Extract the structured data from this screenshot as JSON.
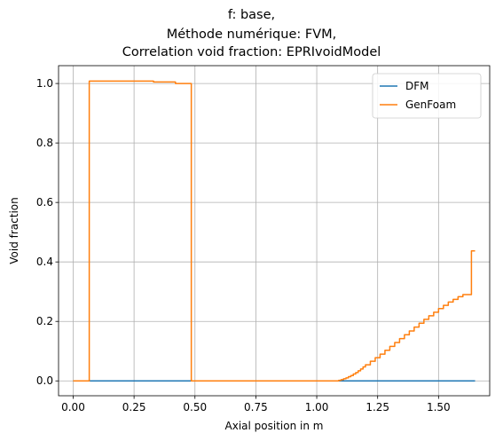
{
  "chart_data": {
    "type": "line",
    "title_lines": [
      "f: base,",
      "Méthode numérique: FVM,",
      "Correlation void fraction: EPRIvoidModel"
    ],
    "xlabel": "Axial position in m",
    "ylabel": "Void fraction",
    "xlim": [
      -0.06,
      1.71
    ],
    "ylim": [
      -0.05,
      1.06
    ],
    "x_ticks": [
      0.0,
      0.25,
      0.5,
      0.75,
      1.0,
      1.25,
      1.5
    ],
    "x_tick_labels": [
      "0.00",
      "0.25",
      "0.50",
      "0.75",
      "1.00",
      "1.25",
      "1.50"
    ],
    "y_ticks": [
      0.0,
      0.2,
      0.4,
      0.6,
      0.8,
      1.0
    ],
    "y_tick_labels": [
      "0.0",
      "0.2",
      "0.4",
      "0.6",
      "0.8",
      "1.0"
    ],
    "grid": true,
    "legend_position": "top-right",
    "series": [
      {
        "name": "DFM",
        "color": "#1f77b4",
        "step": false,
        "x": [
          0.0,
          1.65
        ],
        "y": [
          0.0,
          0.0
        ]
      },
      {
        "name": "GenFoam",
        "color": "#ff7f0e",
        "step": true,
        "x": [
          0.0,
          0.066,
          0.33,
          0.42,
          0.485,
          1.09,
          1.1,
          1.11,
          1.12,
          1.13,
          1.14,
          1.15,
          1.16,
          1.17,
          1.18,
          1.19,
          1.2,
          1.22,
          1.24,
          1.26,
          1.28,
          1.3,
          1.32,
          1.34,
          1.36,
          1.38,
          1.4,
          1.42,
          1.44,
          1.46,
          1.48,
          1.5,
          1.52,
          1.54,
          1.56,
          1.58,
          1.6,
          1.615,
          1.635,
          1.65
        ],
        "y": [
          0.0,
          1.008,
          1.005,
          1.0,
          0.0,
          0.002,
          0.004,
          0.007,
          0.01,
          0.014,
          0.018,
          0.023,
          0.028,
          0.034,
          0.04,
          0.047,
          0.054,
          0.066,
          0.078,
          0.09,
          0.103,
          0.116,
          0.129,
          0.142,
          0.155,
          0.168,
          0.181,
          0.194,
          0.207,
          0.219,
          0.231,
          0.243,
          0.254,
          0.265,
          0.274,
          0.283,
          0.29,
          0.29,
          0.437,
          0.437
        ]
      }
    ]
  }
}
